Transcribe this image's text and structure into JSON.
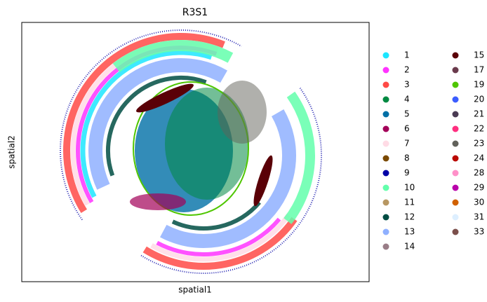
{
  "chart_data": {
    "type": "scatter",
    "title": "R3S1",
    "xlabel": "spatial1",
    "ylabel": "spatial2",
    "series": [
      {
        "name": "1",
        "color": "#1CE6FF"
      },
      {
        "name": "2",
        "color": "#FF34FF"
      },
      {
        "name": "3",
        "color": "#FF4A46"
      },
      {
        "name": "4",
        "color": "#008941"
      },
      {
        "name": "5",
        "color": "#006FA6"
      },
      {
        "name": "6",
        "color": "#A30059"
      },
      {
        "name": "7",
        "color": "#FFDBE5"
      },
      {
        "name": "8",
        "color": "#7A4900"
      },
      {
        "name": "9",
        "color": "#0000A6"
      },
      {
        "name": "10",
        "color": "#63FFAC"
      },
      {
        "name": "11",
        "color": "#B79762"
      },
      {
        "name": "12",
        "color": "#004D43"
      },
      {
        "name": "13",
        "color": "#8FB0FF"
      },
      {
        "name": "14",
        "color": "#997D87"
      },
      {
        "name": "15",
        "color": "#5A0007"
      },
      {
        "name": "17",
        "color": "#6A3A4C"
      },
      {
        "name": "19",
        "color": "#4FC601"
      },
      {
        "name": "20",
        "color": "#3B5DFF"
      },
      {
        "name": "21",
        "color": "#4A3B53"
      },
      {
        "name": "22",
        "color": "#FF2F80"
      },
      {
        "name": "23",
        "color": "#61615A"
      },
      {
        "name": "24",
        "color": "#BA0900"
      },
      {
        "name": "28",
        "color": "#FF90C9"
      },
      {
        "name": "29",
        "color": "#B903AA"
      },
      {
        "name": "30",
        "color": "#D16100"
      },
      {
        "name": "31",
        "color": "#DDEFFF"
      },
      {
        "name": "33",
        "color": "#7B4F4B"
      }
    ]
  }
}
